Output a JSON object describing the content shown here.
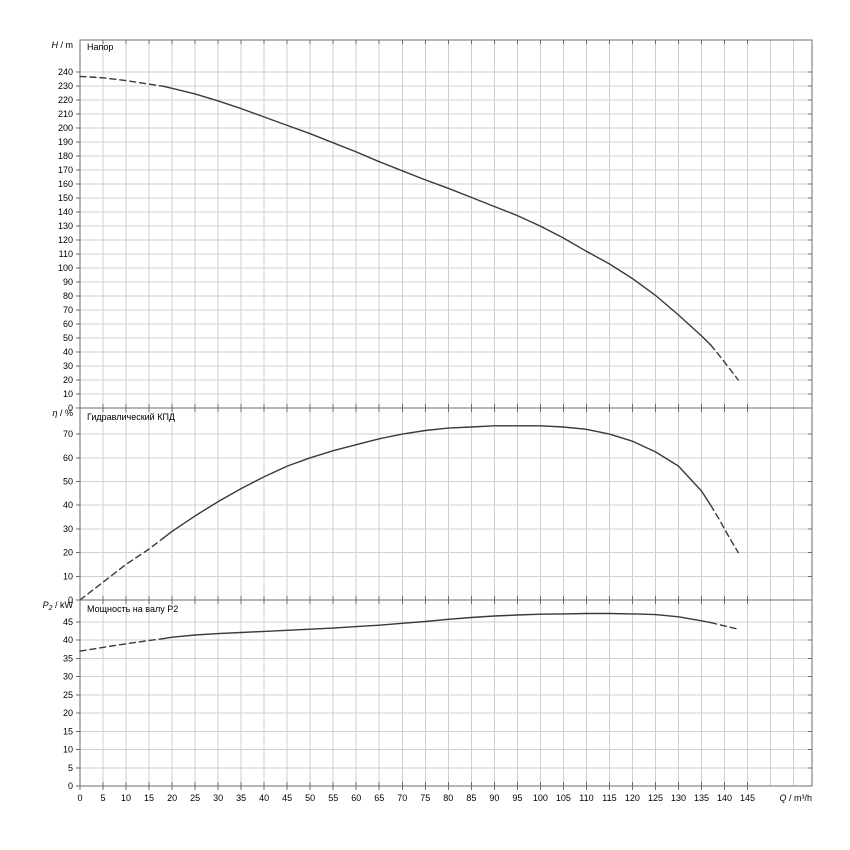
{
  "colors": {
    "curve": "#3a3a3a",
    "grid": "#cfcfcf",
    "frame": "#6b6b6b",
    "text": "#000000",
    "background": "#ffffff"
  },
  "xaxis": {
    "label_symbol": "Q",
    "label_unit": "m³/h",
    "xlim": [
      0,
      159
    ],
    "tick_min": 0,
    "tick_step": 5,
    "tick_max": 145,
    "grid_max": 155
  },
  "chart_data": [
    {
      "type": "line",
      "id": "head",
      "title": "Напор",
      "ylabel_symbol": "H",
      "ylabel_sub": "",
      "ylabel_unit": "m",
      "ylim": [
        0,
        263
      ],
      "ytick_step": 10,
      "ytick_max": 240,
      "segments": [
        {
          "name": "head-curve-dashed-left",
          "style": "dashed",
          "x": [
            0,
            5,
            10,
            15,
            18
          ],
          "y": [
            237,
            236,
            234,
            231.5,
            230
          ]
        },
        {
          "name": "head-curve-solid",
          "style": "solid",
          "x": [
            18,
            20,
            25,
            30,
            35,
            40,
            45,
            50,
            55,
            60,
            65,
            70,
            75,
            80,
            85,
            90,
            95,
            100,
            105,
            110,
            115,
            120,
            125,
            130,
            135,
            137
          ],
          "y": [
            230,
            228.5,
            224.5,
            219.5,
            214,
            208,
            202,
            196,
            189.5,
            183,
            176,
            169.5,
            163,
            157,
            150.5,
            144,
            137.5,
            130,
            121.5,
            112,
            103,
            92.5,
            80.5,
            66.5,
            51.5,
            45
          ]
        },
        {
          "name": "head-curve-dashed-right",
          "style": "dashed",
          "x": [
            137,
            139,
            141,
            143
          ],
          "y": [
            45,
            37,
            28.5,
            20
          ]
        }
      ]
    },
    {
      "type": "line",
      "id": "efficiency",
      "title": "Гидравлический КПД",
      "ylabel_symbol": "η",
      "ylabel_sub": "",
      "ylabel_unit": "%",
      "ylim": [
        0,
        81
      ],
      "ytick_step": 10,
      "ytick_max": 70,
      "segments": [
        {
          "name": "efficiency-curve-dashed-left",
          "style": "dashed",
          "x": [
            0,
            5,
            10,
            15,
            18
          ],
          "y": [
            0,
            7.5,
            15,
            21.5,
            26
          ]
        },
        {
          "name": "efficiency-curve-solid",
          "style": "solid",
          "x": [
            18,
            20,
            25,
            30,
            35,
            40,
            45,
            50,
            55,
            60,
            65,
            70,
            75,
            80,
            85,
            90,
            95,
            100,
            105,
            110,
            115,
            120,
            125,
            130,
            135,
            137
          ],
          "y": [
            26,
            29,
            35.5,
            41.5,
            47,
            52,
            56.5,
            60,
            63,
            65.5,
            68,
            70,
            71.5,
            72.5,
            73,
            73.5,
            73.5,
            73.5,
            73,
            72,
            70,
            67,
            62.5,
            56.5,
            46,
            40
          ]
        },
        {
          "name": "efficiency-curve-dashed-right",
          "style": "dashed",
          "x": [
            137,
            139,
            141,
            143
          ],
          "y": [
            40,
            33.5,
            26.5,
            20
          ]
        }
      ]
    },
    {
      "type": "line",
      "id": "power",
      "title": "Мощность на валу P2",
      "ylabel_symbol": "P",
      "ylabel_sub": "2",
      "ylabel_unit": "kW",
      "ylim": [
        0,
        51
      ],
      "ytick_step": 5,
      "ytick_max": 45,
      "segments": [
        {
          "name": "power-curve-dashed-left",
          "style": "dashed",
          "x": [
            0,
            5,
            10,
            15,
            18
          ],
          "y": [
            37,
            38,
            39,
            39.9,
            40.4
          ]
        },
        {
          "name": "power-curve-solid",
          "style": "solid",
          "x": [
            18,
            20,
            25,
            30,
            35,
            40,
            45,
            50,
            55,
            60,
            65,
            70,
            75,
            80,
            85,
            90,
            95,
            100,
            105,
            110,
            115,
            120,
            125,
            130,
            135,
            137
          ],
          "y": [
            40.4,
            40.8,
            41.4,
            41.8,
            42.1,
            42.4,
            42.7,
            43,
            43.3,
            43.7,
            44.1,
            44.6,
            45.1,
            45.7,
            46.2,
            46.6,
            46.9,
            47.1,
            47.2,
            47.3,
            47.3,
            47.2,
            47,
            46.4,
            45.3,
            44.8
          ]
        },
        {
          "name": "power-curve-dashed-right",
          "style": "dashed",
          "x": [
            137,
            139,
            141,
            143
          ],
          "y": [
            44.8,
            44.2,
            43.6,
            43
          ]
        }
      ]
    }
  ]
}
